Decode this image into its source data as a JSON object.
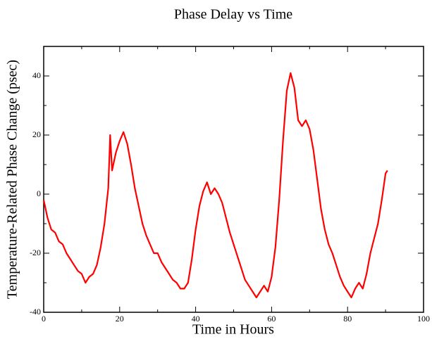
{
  "chart_data": {
    "type": "line",
    "title": "Phase Delay vs Time",
    "xlabel": "Time in Hours",
    "ylabel": "Temperature-Related Phase Change (psec)",
    "series": [
      {
        "name": "Phase Delay",
        "color": "#ff0000",
        "x": [
          0,
          1,
          2,
          3,
          4,
          5,
          6,
          7,
          8,
          9,
          10,
          11,
          12,
          13,
          14,
          15,
          16,
          17,
          17.5,
          18,
          19,
          20,
          21,
          22,
          23,
          24,
          25,
          26,
          27,
          28,
          29,
          30,
          31,
          32,
          33,
          34,
          35,
          36,
          37,
          38,
          39,
          40,
          41,
          42,
          43,
          44,
          45,
          46,
          47,
          48,
          49,
          50,
          51,
          52,
          53,
          54,
          55,
          56,
          57,
          58,
          59,
          60,
          61,
          62,
          63,
          64,
          65,
          66,
          67,
          68,
          69,
          70,
          71,
          72,
          73,
          74,
          75,
          76,
          77,
          78,
          79,
          80,
          81,
          82,
          83,
          84,
          85,
          86,
          87,
          88,
          89,
          90,
          90.5
        ],
        "values": [
          -2,
          -8,
          -12,
          -13,
          -16,
          -17,
          -20,
          -22,
          -24,
          -26,
          -27,
          -30,
          -28,
          -27,
          -24,
          -18,
          -10,
          2,
          20,
          8,
          14,
          18,
          21,
          17,
          10,
          2,
          -4,
          -10,
          -14,
          -17,
          -20,
          -20,
          -23,
          -25,
          -27,
          -29,
          -30,
          -32,
          -32,
          -30,
          -22,
          -12,
          -4,
          1,
          4,
          0,
          2,
          0,
          -3,
          -8,
          -13,
          -17,
          -21,
          -25,
          -29,
          -31,
          -33,
          -35,
          -33,
          -31,
          -33,
          -28,
          -18,
          -2,
          18,
          35,
          41,
          36,
          25,
          23,
          25,
          22,
          15,
          5,
          -5,
          -12,
          -17,
          -20,
          -24,
          -28,
          -31,
          -33,
          -35,
          -32,
          -30,
          -32,
          -27,
          -20,
          -15,
          -10,
          -2,
          7,
          8
        ]
      }
    ],
    "xlim": [
      0,
      100
    ],
    "ylim": [
      -40,
      50
    ],
    "xticks": [
      0,
      20,
      40,
      60,
      80,
      100
    ],
    "yticks": [
      -40,
      -20,
      0,
      20,
      40
    ]
  }
}
